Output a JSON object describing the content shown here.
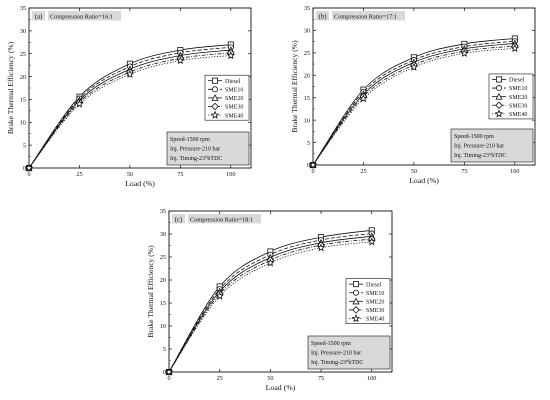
{
  "chart_data": [
    {
      "panel": "(a)",
      "type": "line",
      "title": "Compression Ratio=16:1",
      "xlabel": "Load (%)",
      "ylabel": "Brake Thermal Efficiency (%)",
      "xlim": [
        0,
        110
      ],
      "ylim": [
        0,
        35
      ],
      "xticks": [
        0,
        25,
        50,
        75,
        100
      ],
      "yticks": [
        0,
        5,
        10,
        15,
        20,
        25,
        30,
        35
      ],
      "x": [
        0,
        25,
        50,
        75,
        100
      ],
      "series": [
        {
          "name": "Diesel",
          "marker": "square",
          "dash": "solid",
          "values": [
            0,
            15.6,
            22.8,
            25.8,
            27.0
          ]
        },
        {
          "name": "SME10",
          "marker": "circle",
          "dash": "dash",
          "values": [
            0,
            15.2,
            22.2,
            25.2,
            26.4
          ]
        },
        {
          "name": "SME20",
          "marker": "triangle",
          "dash": "solid",
          "values": [
            0,
            14.8,
            21.6,
            24.6,
            25.8
          ]
        },
        {
          "name": "SME30",
          "marker": "diamond",
          "dash": "dashdot",
          "values": [
            0,
            14.4,
            21.0,
            24.0,
            25.2
          ]
        },
        {
          "name": "SME40",
          "marker": "star",
          "dash": "dot",
          "values": [
            0,
            14.0,
            20.5,
            23.5,
            24.6
          ]
        }
      ],
      "legend_position": "middle-right",
      "conditions": [
        "Speed-1500 rpm",
        "Inj. Pressure-210 bar",
        "Inj. Timing-23°bTDC"
      ]
    },
    {
      "panel": "(b)",
      "type": "line",
      "title": "Compression Ratio=17:1",
      "xlabel": "Load (%)",
      "ylabel": "Brake Thermal Efficiency (%)",
      "xlim": [
        0,
        110
      ],
      "ylim": [
        0,
        35
      ],
      "xticks": [
        0,
        25,
        50,
        75,
        100
      ],
      "yticks": [
        0,
        5,
        10,
        15,
        20,
        25,
        30,
        35
      ],
      "x": [
        0,
        25,
        50,
        75,
        100
      ],
      "series": [
        {
          "name": "Diesel",
          "marker": "square",
          "dash": "solid",
          "values": [
            0,
            16.8,
            24.0,
            27.0,
            28.2
          ]
        },
        {
          "name": "SME10",
          "marker": "circle",
          "dash": "dash",
          "values": [
            0,
            16.3,
            23.4,
            26.4,
            27.6
          ]
        },
        {
          "name": "SME20",
          "marker": "triangle",
          "dash": "solid",
          "values": [
            0,
            15.8,
            22.9,
            25.9,
            27.1
          ]
        },
        {
          "name": "SME30",
          "marker": "diamond",
          "dash": "dashdot",
          "values": [
            0,
            15.3,
            22.3,
            25.4,
            26.5
          ]
        },
        {
          "name": "SME40",
          "marker": "star",
          "dash": "dot",
          "values": [
            0,
            14.8,
            21.8,
            24.9,
            26.0
          ]
        }
      ],
      "legend_position": "middle-right",
      "conditions": [
        "Speed-1500 rpm",
        "Inj. Pressure-210 bar",
        "Inj. Timing-23°bTDC"
      ]
    },
    {
      "panel": "(c)",
      "type": "line",
      "title": "Compression Ratio=18:1",
      "xlabel": "Load (%)",
      "ylabel": "Brake Thermal Efficiency (%)",
      "xlim": [
        0,
        110
      ],
      "ylim": [
        0,
        35
      ],
      "xticks": [
        0,
        25,
        50,
        75,
        100
      ],
      "yticks": [
        0,
        5,
        10,
        15,
        20,
        25,
        30,
        35
      ],
      "x": [
        0,
        25,
        50,
        75,
        100
      ],
      "series": [
        {
          "name": "Diesel",
          "marker": "square",
          "dash": "solid",
          "values": [
            0,
            18.6,
            26.2,
            29.3,
            30.8
          ]
        },
        {
          "name": "SME10",
          "marker": "circle",
          "dash": "dash",
          "values": [
            0,
            18.0,
            25.5,
            28.7,
            30.1
          ]
        },
        {
          "name": "SME20",
          "marker": "triangle",
          "dash": "solid",
          "values": [
            0,
            17.5,
            24.9,
            28.1,
            29.5
          ]
        },
        {
          "name": "SME30",
          "marker": "diamond",
          "dash": "dashdot",
          "values": [
            0,
            17.0,
            24.3,
            27.6,
            28.9
          ]
        },
        {
          "name": "SME40",
          "marker": "star",
          "dash": "dot",
          "values": [
            0,
            16.5,
            23.7,
            27.0,
            28.3
          ]
        }
      ],
      "legend_position": "middle-right",
      "conditions": [
        "Speed-1500 rpm",
        "Inj. Pressure-210 bar",
        "Inj. Timing-23°bTDC"
      ]
    }
  ]
}
